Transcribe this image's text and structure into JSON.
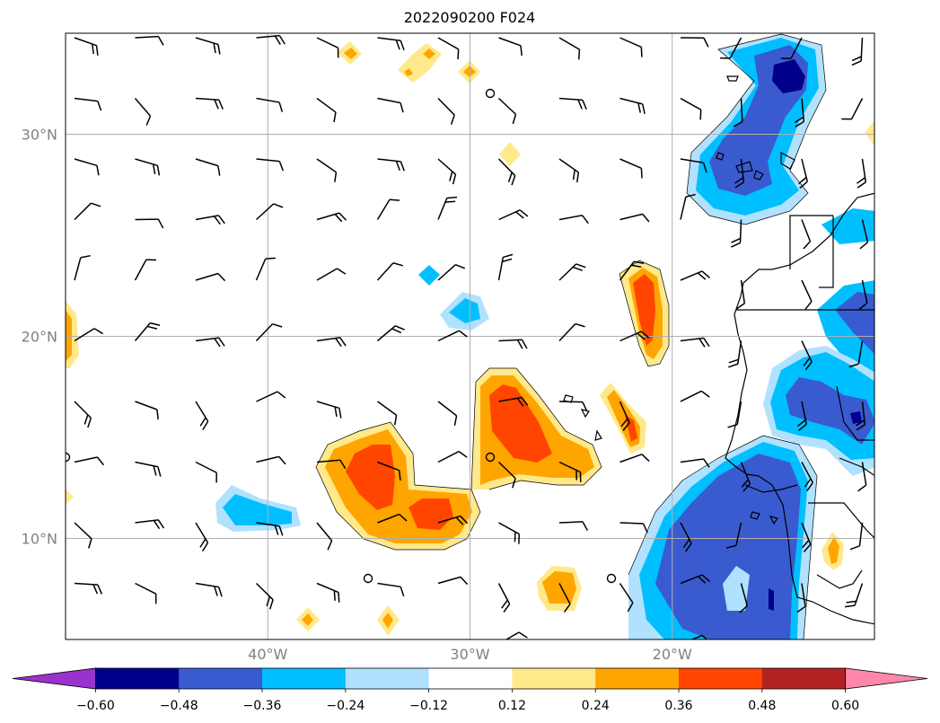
{
  "title": "2022090200 F024",
  "map": {
    "lon_range": [
      -50,
      -10
    ],
    "lat_range": [
      5,
      35
    ],
    "gridlines": true,
    "grid_color": "#b0b0b0",
    "lat_ticks": [
      {
        "value": 30,
        "label": "30°N"
      },
      {
        "value": 20,
        "label": "20°N"
      },
      {
        "value": 10,
        "label": "10°N"
      }
    ],
    "lon_ticks": [
      {
        "value": -40,
        "label": "40°W"
      },
      {
        "value": -30,
        "label": "30°W"
      },
      {
        "value": -20,
        "label": "20°W"
      }
    ],
    "wind_barbs": "black",
    "coastline_color": "#000000"
  },
  "colorbar": {
    "orientation": "horizontal",
    "extend": "both",
    "under_color": "#9a32cd",
    "over_color": "#ff88aa",
    "levels": [
      -0.6,
      -0.48,
      -0.36,
      -0.24,
      -0.12,
      0.12,
      0.24,
      0.36,
      0.48,
      0.6
    ],
    "tick_labels": [
      "−0.60",
      "−0.48",
      "−0.36",
      "−0.24",
      "−0.12",
      "0.12",
      "0.24",
      "0.36",
      "0.48",
      "0.60"
    ],
    "colors": [
      "#00008b",
      "#3a5bd0",
      "#00bfff",
      "#b0e2ff",
      "#ffffff",
      "#ffe98a",
      "#ffa500",
      "#ff4500",
      "#b22222"
    ]
  },
  "contour_colors": {
    "neg3": "#00008b",
    "neg2": "#3a5bd0",
    "neg1": "#00bfff",
    "neg0": "#b0e2ff",
    "pos0": "#ffe98a",
    "pos1": "#ffa500",
    "pos2": "#ff4500"
  }
}
